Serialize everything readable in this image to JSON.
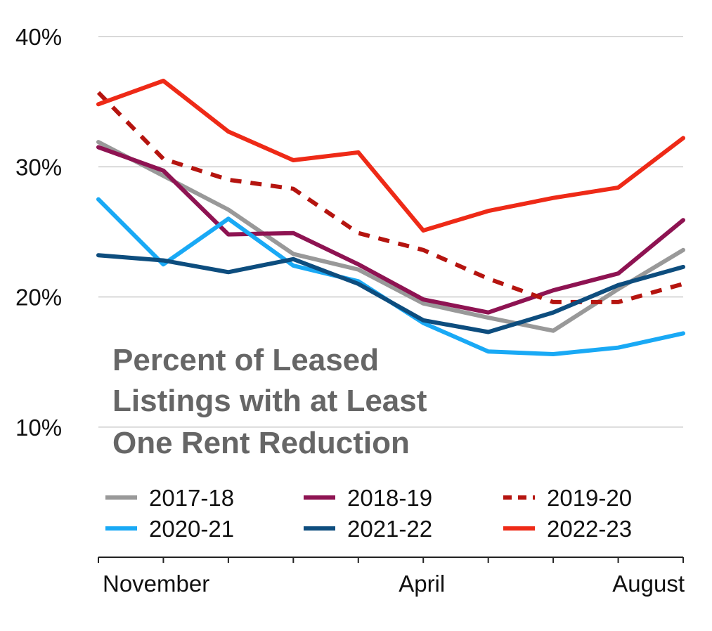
{
  "chart_data": {
    "type": "line",
    "title_lines": [
      "Percent of Leased",
      "Listings with at Least",
      "One Rent Reduction"
    ],
    "xlabel": "",
    "ylabel": "",
    "ylim": [
      0,
      40
    ],
    "yticks": [
      10,
      20,
      30,
      40
    ],
    "ytick_labels": [
      "10%",
      "20%",
      "30%",
      "40%"
    ],
    "x_tick_labels": [
      {
        "index": 1,
        "label": "November"
      },
      {
        "index": 6,
        "label": "April"
      },
      {
        "index": 10,
        "label": "August"
      }
    ],
    "x_point_count": 10,
    "grid": "horizontal",
    "legend_position": "bottom-inside",
    "series": [
      {
        "name": "2017-18",
        "color": "#999999",
        "dash": false,
        "values": [
          31.9,
          29.3,
          26.7,
          23.3,
          22.1,
          19.5,
          18.4,
          17.4,
          20.6,
          23.6
        ]
      },
      {
        "name": "2018-19",
        "color": "#8e1352",
        "dash": false,
        "values": [
          31.5,
          29.7,
          24.8,
          24.9,
          22.5,
          19.8,
          18.8,
          20.5,
          21.8,
          25.9
        ]
      },
      {
        "name": "2019-20",
        "color": "#b5140f",
        "dash": true,
        "values": [
          35.7,
          30.6,
          29.0,
          28.3,
          24.9,
          23.6,
          21.4,
          19.6,
          19.6,
          21.0
        ]
      },
      {
        "name": "2020-21",
        "color": "#19a9f5",
        "dash": false,
        "values": [
          27.5,
          22.5,
          26.0,
          22.4,
          21.2,
          18.0,
          15.8,
          15.6,
          16.1,
          17.2
        ]
      },
      {
        "name": "2021-22",
        "color": "#0d4d7e",
        "dash": false,
        "values": [
          23.2,
          22.8,
          21.9,
          22.9,
          21.0,
          18.2,
          17.3,
          18.8,
          20.9,
          22.3
        ]
      },
      {
        "name": "2022-23",
        "color": "#ee2a17",
        "dash": false,
        "values": [
          34.8,
          36.6,
          32.7,
          30.5,
          31.1,
          25.1,
          26.6,
          27.6,
          28.4,
          32.2
        ]
      }
    ]
  }
}
